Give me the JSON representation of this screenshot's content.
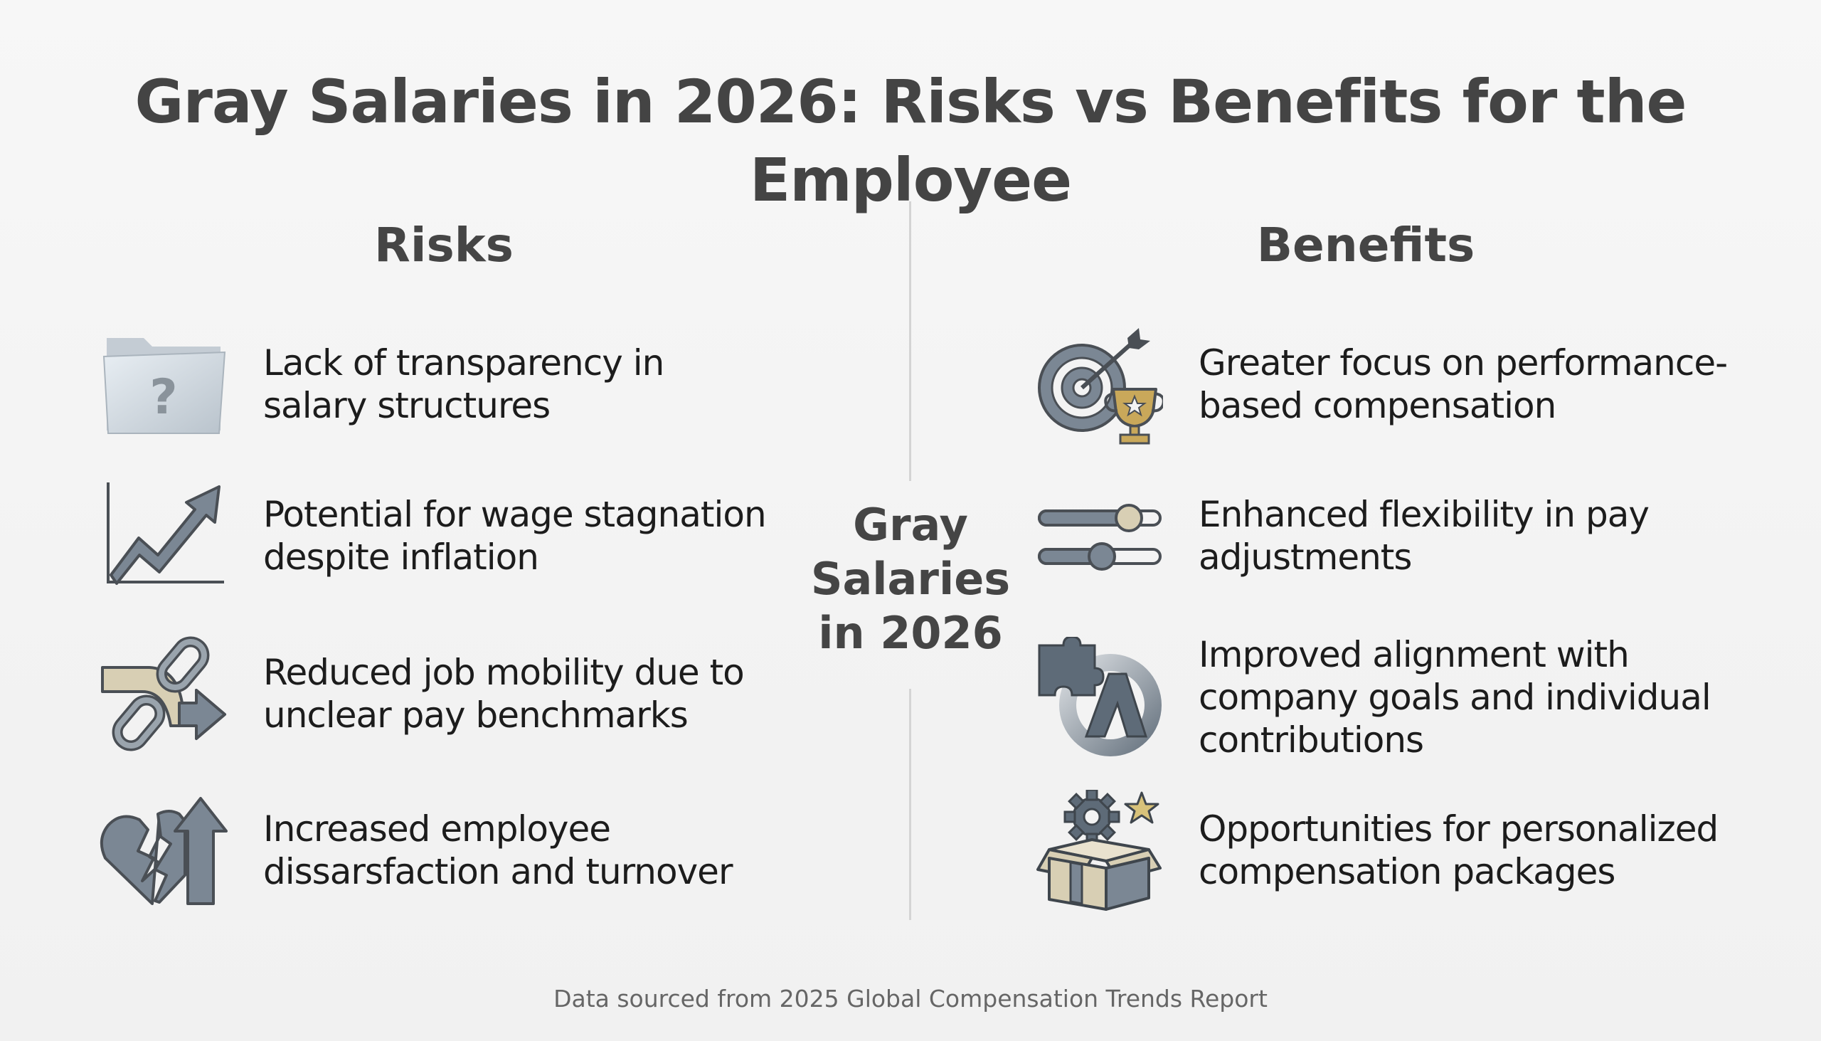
{
  "title": "Gray Salaries in 2026: Risks vs Benefits for the Employee",
  "center_label": {
    "line1": "Gray",
    "line2": "Salaries",
    "line3": "in 2026"
  },
  "risks": {
    "heading": "Risks",
    "items": [
      {
        "line1": "Lack of transparency in",
        "line2": "salary structures",
        "icon": "question-folder-icon"
      },
      {
        "line1": "Potential for wage stagnation",
        "line2": "despite inflation",
        "icon": "trend-up-arrow-icon"
      },
      {
        "line1": "Reduced job mobility due to",
        "line2": "unclear pay benchmarks",
        "icon": "broken-chain-icon"
      },
      {
        "line1": "Increased employee",
        "line2": "dissarsfaction and turnover",
        "icon": "broken-heart-arrow-icon"
      }
    ]
  },
  "benefits": {
    "heading": "Benefits",
    "items": [
      {
        "line1": "Greater focus on performance-",
        "line2": "based compensation",
        "icon": "target-trophy-icon"
      },
      {
        "line1": "Enhanced flexibility in pay",
        "line2": "adjustments",
        "icon": "sliders-icon"
      },
      {
        "line1": "Improved alignment with",
        "line2": "company goals and individual",
        "line3": "contributions",
        "icon": "puzzle-alignment-icon"
      },
      {
        "line1": "Opportunities for personalized",
        "line2": "compensation packages",
        "icon": "gear-box-icon"
      }
    ]
  },
  "footer": "Data sourced from 2025 Global Compensation Trends Report",
  "colors": {
    "title": "#444444",
    "text": "#1c1c1c",
    "icon_gray": "#7b8794",
    "icon_dark": "#4a4f55",
    "icon_beige": "#d8cfb4",
    "icon_gold": "#c9a85a",
    "divider": "#d4d4d4"
  }
}
